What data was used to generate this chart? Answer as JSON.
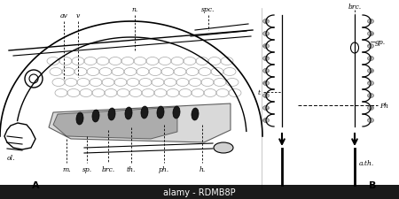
{
  "bg_color": "#ffffff",
  "label_A": "A",
  "label_B": "B",
  "watermark": "alamy - RDMB8P",
  "watermark_bg": "#1a1a1a",
  "nub_color": "#b0b0b0",
  "nub_edge": "#666666",
  "nub_hatch_edge": "#888888"
}
